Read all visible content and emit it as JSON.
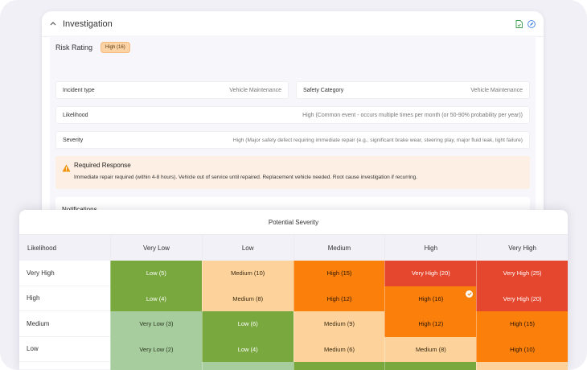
{
  "investigation": {
    "title": "Investigation",
    "risk_rating_label": "Risk Rating",
    "risk_rating_value": "High (16)",
    "fields": {
      "incident_type": {
        "label": "Incident type",
        "value": "Vehicle Maintenance"
      },
      "safety_category": {
        "label": "Safety Category",
        "value": "Vehicle Maintenance"
      },
      "likelihood": {
        "label": "Likelihood",
        "value": "High (Common event - occurs multiple times per month (or 50-90% probability per year))"
      },
      "severity": {
        "label": "Severity",
        "value": "High (Major safety defect requiring immediate repair (e.g., significant brake wear, steering play, major fluid leak, light failure)"
      }
    },
    "required_response": {
      "title": "Required Response",
      "text": "Immediate repair required (within 4-8 hours). Vehicle out of service until repaired. Replacement vehicle needed. Root cause investigation if recurring."
    },
    "notifications_title": "Notifications"
  },
  "matrix": {
    "title": "Potential Severity",
    "likelihood_header": "Likelihood",
    "severity_headers": [
      "Very Low",
      "Low",
      "Medium",
      "High",
      "Very High"
    ],
    "rows": [
      {
        "label": "Very High",
        "cells": [
          {
            "text": "Low (5)",
            "level": "low"
          },
          {
            "text": "Medium (10)",
            "level": "med"
          },
          {
            "text": "High (15)",
            "level": "high"
          },
          {
            "text": "Very High (20)",
            "level": "vhigh"
          },
          {
            "text": "Very High (25)",
            "level": "vhigh"
          }
        ]
      },
      {
        "label": "High",
        "cells": [
          {
            "text": "Low (4)",
            "level": "low"
          },
          {
            "text": "Medium (8)",
            "level": "med"
          },
          {
            "text": "High (12)",
            "level": "high"
          },
          {
            "text": "High (16)",
            "level": "high",
            "selected": true
          },
          {
            "text": "Very High (20)",
            "level": "vhigh"
          }
        ]
      },
      {
        "label": "Medium",
        "cells": [
          {
            "text": "Very Low (3)",
            "level": "vlow"
          },
          {
            "text": "Low (6)",
            "level": "low"
          },
          {
            "text": "Medium (9)",
            "level": "med"
          },
          {
            "text": "High (12)",
            "level": "high"
          },
          {
            "text": "High (15)",
            "level": "high"
          }
        ]
      },
      {
        "label": "Low",
        "cells": [
          {
            "text": "Very Low (2)",
            "level": "vlow"
          },
          {
            "text": "Low (4)",
            "level": "low"
          },
          {
            "text": "Medium (6)",
            "level": "med"
          },
          {
            "text": "Medium (8)",
            "level": "med"
          },
          {
            "text": "High (10)",
            "level": "high"
          }
        ]
      }
    ],
    "tail_row_levels": [
      "vlow",
      "vlow",
      "low",
      "low",
      "med"
    ]
  },
  "icons": {
    "collapse": "chevron-up-icon",
    "export": "file-export-icon",
    "edit": "edit-icon",
    "warning": "warning-triangle-icon",
    "selected": "check-circle-icon"
  }
}
